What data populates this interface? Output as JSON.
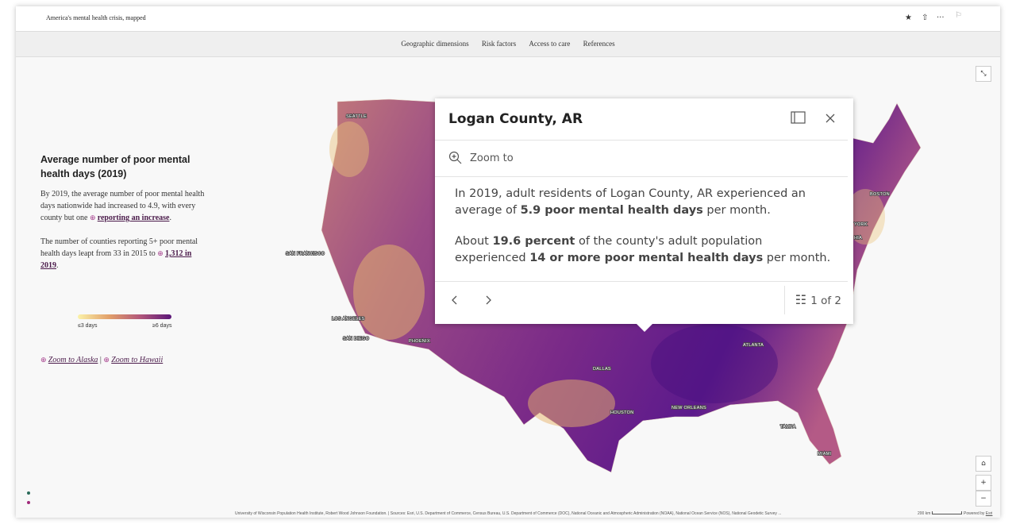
{
  "header": {
    "title": "America's mental health crisis, mapped"
  },
  "nav": [
    "Geographic dimensions",
    "Risk factors",
    "Access to care",
    "References"
  ],
  "sidebar": {
    "heading": "Average number of poor mental health days (2019)",
    "paragraph1": {
      "text": "By 2019, the average number of poor mental health days nationwide had increased to 4.9, with every county but one ",
      "link": "reporting an increase",
      "end": "."
    },
    "paragraph2": {
      "text": "The number of counties reporting 5+ poor mental health days leapt from 33 in 2015 to ",
      "link": "1,312 in 2019",
      "end": "."
    },
    "legend": {
      "low": "≤3 days",
      "high": "≥6 days"
    },
    "zoom_links": {
      "alaska": "Zoom to Alaska",
      "separator": "|",
      "hawaii": "Zoom to Hawaii"
    }
  },
  "map": {
    "cities": [
      "SEATTLE",
      "SAN FRANCISCO",
      "LOS ANGELES",
      "SAN DIEGO",
      "PHOENIX",
      "DALLAS",
      "HOUSTON",
      "NEW ORLEANS",
      "ATLANTA",
      "TAMPA",
      "MIAMI",
      "BOSTON",
      "YORK",
      "HIA"
    ],
    "attribution": "University of Wisconsin Population Health Institute, Robert Wood Johnson Foundation. | Sources: Esri, U.S. Department of Commerce, Census Bureau, U.S. Department of Commerce (DOC), National Oceanic and Atmospheric Administration (NOAA), National Ocean Service (NOS), National Geodetic Survey ...",
    "scale": "200 km",
    "powered_by": "Powered by",
    "esri": "Esri"
  },
  "popup": {
    "title": "Logan County, AR",
    "zoom": "Zoom to",
    "paragraph1": [
      "In 2019, adult residents of Logan County, AR experienced an average of ",
      "5.9 poor mental health days",
      " per month."
    ],
    "paragraph2": [
      "About ",
      "19.6 percent",
      " of the county's adult population experienced ",
      "14 or more poor mental health days",
      " per month."
    ],
    "pager": "1 of 2"
  }
}
